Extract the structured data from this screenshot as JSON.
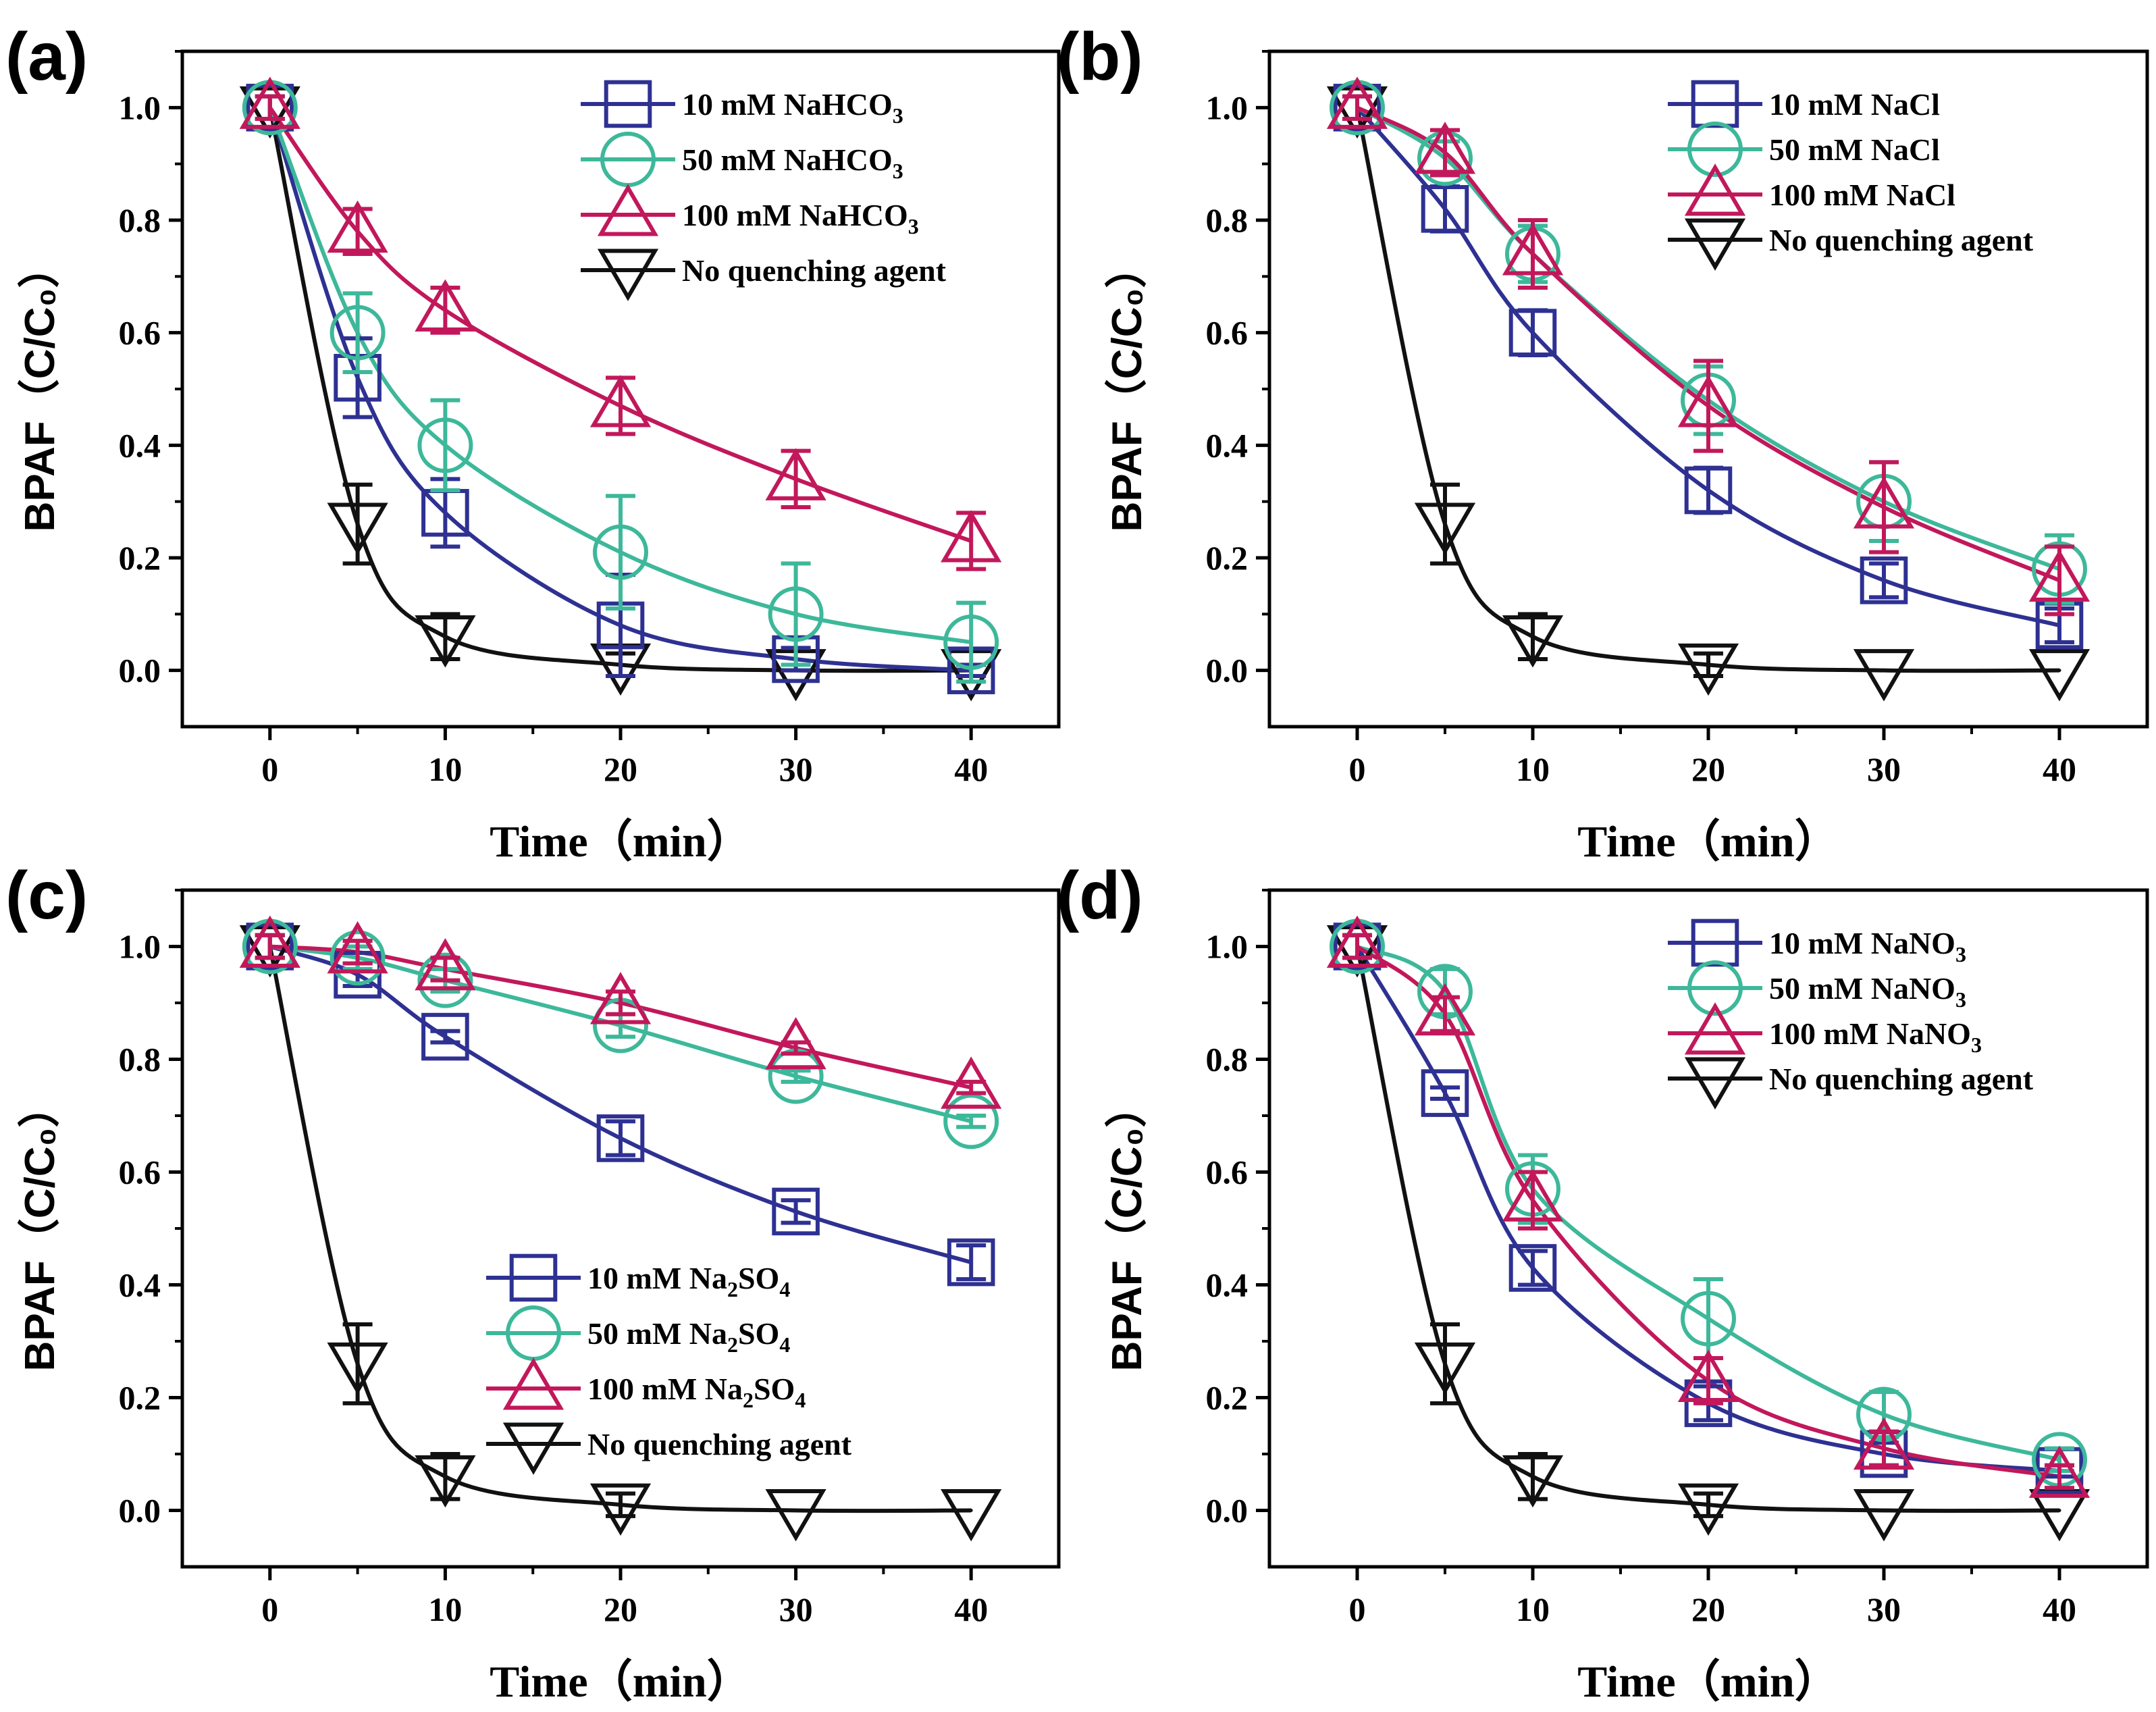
{
  "chart_data": [
    {
      "type": "line",
      "panel_label": "(a)",
      "xlabel": "Time（min）",
      "ylabel": "BPAF（C/C₀）",
      "xlim": [
        -5,
        45
      ],
      "ylim": [
        -0.1,
        1.1
      ],
      "xticks": [
        0,
        10,
        20,
        30,
        40
      ],
      "yticks": [
        0.0,
        0.2,
        0.4,
        0.6,
        0.8,
        1.0
      ],
      "x": [
        0,
        5,
        10,
        20,
        30,
        40
      ],
      "legend_position": "top-right",
      "series": [
        {
          "name": "10 mM NaHCO₃",
          "label_main": "10 mM NaHCO",
          "label_sub": "3",
          "label_tail": "",
          "marker": "square",
          "color": "#2e3192",
          "values": [
            1.0,
            0.52,
            0.28,
            0.08,
            0.02,
            0.0
          ],
          "errors": [
            0.02,
            0.07,
            0.06,
            0.09,
            0.02,
            0.01
          ]
        },
        {
          "name": "50 mM NaHCO₃",
          "label_main": "50 mM NaHCO",
          "label_sub": "3",
          "label_tail": "",
          "marker": "circle",
          "color": "#3db89a",
          "values": [
            1.0,
            0.6,
            0.4,
            0.21,
            0.1,
            0.05
          ],
          "errors": [
            0.02,
            0.07,
            0.08,
            0.1,
            0.09,
            0.07
          ]
        },
        {
          "name": "100 mM NaHCO₃",
          "label_main": "100 mM NaHCO",
          "label_sub": "3",
          "label_tail": "",
          "marker": "triangle-up",
          "color": "#c2185b",
          "values": [
            1.0,
            0.78,
            0.64,
            0.47,
            0.34,
            0.23
          ],
          "errors": [
            0.02,
            0.04,
            0.04,
            0.05,
            0.05,
            0.05
          ]
        },
        {
          "name": "No quenching agent",
          "label_main": "No quenching agent",
          "label_sub": "",
          "label_tail": "",
          "marker": "triangle-down",
          "color": "#111111",
          "values": [
            1.0,
            0.26,
            0.06,
            0.01,
            0.0,
            0.0
          ],
          "errors": [
            0.02,
            0.07,
            0.04,
            0.02,
            0.0,
            0.0
          ]
        }
      ]
    },
    {
      "type": "line",
      "panel_label": "(b)",
      "xlabel": "Time（min）",
      "ylabel": "BPAF（C/C₀）",
      "xlim": [
        -5,
        45
      ],
      "ylim": [
        -0.1,
        1.1
      ],
      "xticks": [
        0,
        10,
        20,
        30,
        40
      ],
      "yticks": [
        0.0,
        0.2,
        0.4,
        0.6,
        0.8,
        1.0
      ],
      "x": [
        0,
        5,
        10,
        20,
        30,
        40
      ],
      "legend_position": "top-right",
      "series": [
        {
          "name": "10 mM NaCl",
          "label_main": "10 mM NaCl",
          "label_sub": "",
          "label_tail": "",
          "marker": "square",
          "color": "#2e3192",
          "values": [
            1.0,
            0.82,
            0.6,
            0.32,
            0.16,
            0.08
          ],
          "errors": [
            0.02,
            0.04,
            0.04,
            0.04,
            0.03,
            0.03
          ]
        },
        {
          "name": "50 mM NaCl",
          "label_main": "50 mM NaCl",
          "label_sub": "",
          "label_tail": "",
          "marker": "circle",
          "color": "#3db89a",
          "values": [
            1.0,
            0.91,
            0.74,
            0.48,
            0.3,
            0.18
          ],
          "errors": [
            0.02,
            0.03,
            0.05,
            0.06,
            0.07,
            0.06
          ]
        },
        {
          "name": "100 mM NaCl",
          "label_main": "100 mM NaCl",
          "label_sub": "",
          "label_tail": "",
          "marker": "triangle-up",
          "color": "#c2185b",
          "values": [
            1.0,
            0.92,
            0.74,
            0.47,
            0.29,
            0.16
          ],
          "errors": [
            0.02,
            0.04,
            0.06,
            0.08,
            0.08,
            0.06
          ]
        },
        {
          "name": "No quenching agent",
          "label_main": "No quenching agent",
          "label_sub": "",
          "label_tail": "",
          "marker": "triangle-down",
          "color": "#111111",
          "values": [
            1.0,
            0.26,
            0.06,
            0.01,
            0.0,
            0.0
          ],
          "errors": [
            0.02,
            0.07,
            0.04,
            0.02,
            0.0,
            0.0
          ]
        }
      ]
    },
    {
      "type": "line",
      "panel_label": "(c)",
      "xlabel": "Time（min）",
      "ylabel": "BPAF（C/C₀）",
      "xlim": [
        -5,
        45
      ],
      "ylim": [
        -0.1,
        1.1
      ],
      "xticks": [
        0,
        10,
        20,
        30,
        40
      ],
      "yticks": [
        0.0,
        0.2,
        0.4,
        0.6,
        0.8,
        1.0
      ],
      "x": [
        0,
        5,
        10,
        20,
        30,
        40
      ],
      "legend_position": "bottom-center",
      "series": [
        {
          "name": "10 mM Na₂SO₄",
          "label_main": "10 mM Na",
          "label_sub": "2",
          "label_tail": "SO",
          "label_sub2": "4",
          "marker": "square",
          "color": "#2e3192",
          "values": [
            1.0,
            0.95,
            0.84,
            0.66,
            0.53,
            0.44
          ],
          "errors": [
            0.02,
            0.02,
            0.01,
            0.03,
            0.02,
            0.03
          ]
        },
        {
          "name": "50 mM Na₂SO₄",
          "label_main": "50 mM Na",
          "label_sub": "2",
          "label_tail": "SO",
          "label_sub2": "4",
          "marker": "circle",
          "color": "#3db89a",
          "values": [
            1.0,
            0.98,
            0.94,
            0.86,
            0.77,
            0.69
          ],
          "errors": [
            0.02,
            0.02,
            0.02,
            0.02,
            0.01,
            0.01
          ]
        },
        {
          "name": "100 mM Na₂SO₄",
          "label_main": "100 mM Na",
          "label_sub": "2",
          "label_tail": "SO",
          "label_sub2": "4",
          "marker": "triangle-up",
          "color": "#c2185b",
          "values": [
            1.0,
            0.99,
            0.96,
            0.9,
            0.82,
            0.75
          ],
          "errors": [
            0.02,
            0.02,
            0.02,
            0.02,
            0.01,
            0.01
          ]
        },
        {
          "name": "No quenching agent",
          "label_main": "No quenching agent",
          "label_sub": "",
          "label_tail": "",
          "marker": "triangle-down",
          "color": "#111111",
          "values": [
            1.0,
            0.26,
            0.06,
            0.01,
            0.0,
            0.0
          ],
          "errors": [
            0.02,
            0.07,
            0.04,
            0.02,
            0.0,
            0.0
          ]
        }
      ]
    },
    {
      "type": "line",
      "panel_label": "(d)",
      "xlabel": "Time（min）",
      "ylabel": "BPAF（C/C₀）",
      "xlim": [
        -5,
        45
      ],
      "ylim": [
        -0.1,
        1.1
      ],
      "xticks": [
        0,
        10,
        20,
        30,
        40
      ],
      "yticks": [
        0.0,
        0.2,
        0.4,
        0.6,
        0.8,
        1.0
      ],
      "x": [
        0,
        5,
        10,
        20,
        30,
        40
      ],
      "legend_position": "top-right",
      "series": [
        {
          "name": "10 mM NaNO₃",
          "label_main": "10 mM NaNO",
          "label_sub": "3",
          "label_tail": "",
          "marker": "square",
          "color": "#2e3192",
          "values": [
            1.0,
            0.74,
            0.43,
            0.19,
            0.1,
            0.07
          ],
          "errors": [
            0.02,
            0.01,
            0.03,
            0.03,
            0.02,
            0.01
          ]
        },
        {
          "name": "50 mM NaNO₃",
          "label_main": "50 mM NaNO",
          "label_sub": "3",
          "label_tail": "",
          "marker": "circle",
          "color": "#3db89a",
          "values": [
            1.0,
            0.92,
            0.57,
            0.34,
            0.17,
            0.09
          ],
          "errors": [
            0.02,
            0.04,
            0.06,
            0.07,
            0.04,
            0.02
          ]
        },
        {
          "name": "100 mM NaNO₃",
          "label_main": "100 mM NaNO",
          "label_sub": "3",
          "label_tail": "",
          "marker": "triangle-up",
          "color": "#c2185b",
          "values": [
            1.0,
            0.88,
            0.55,
            0.23,
            0.11,
            0.06
          ],
          "errors": [
            0.02,
            0.03,
            0.05,
            0.04,
            0.03,
            0.02
          ]
        },
        {
          "name": "No quenching agent",
          "label_main": "No quenching agent",
          "label_sub": "",
          "label_tail": "",
          "marker": "triangle-down",
          "color": "#111111",
          "values": [
            1.0,
            0.26,
            0.06,
            0.01,
            0.0,
            0.0
          ],
          "errors": [
            0.02,
            0.07,
            0.04,
            0.02,
            0.0,
            0.0
          ]
        }
      ]
    }
  ]
}
